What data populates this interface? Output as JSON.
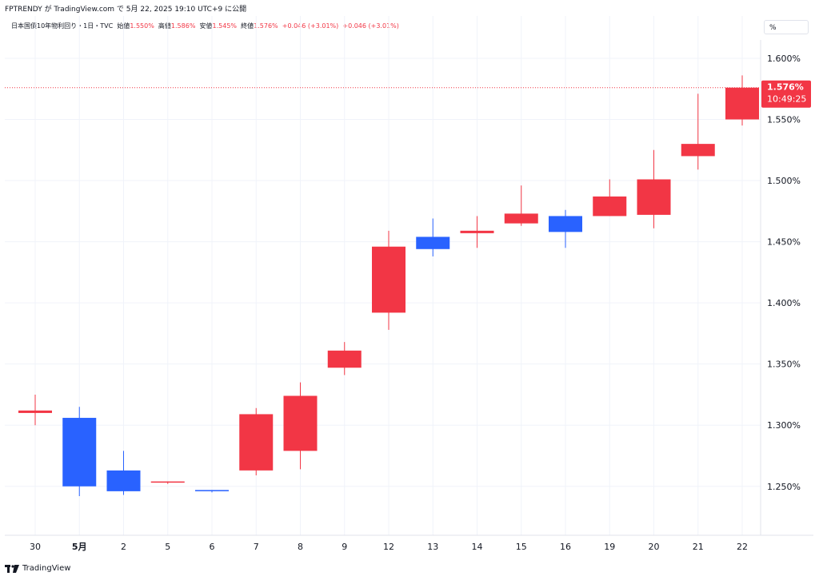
{
  "publisher_line": "FPTRENDY が TradingView.com で 5月 22, 2025 19:10 UTC+9 に公開",
  "legend": {
    "symbol": "日本国債10年物利回り・1日・TVC",
    "open_label": "始値",
    "open_value": "1.550%",
    "high_label": "高値",
    "high_value": "1.586%",
    "low_label": "安値",
    "low_value": "1.545%",
    "close_label": "終値",
    "close_value": "1.576%",
    "change": "+0.046 (+3.01%)",
    "change2": "+0.046 (+3.01%)"
  },
  "unit_selector": "%",
  "price_badge": {
    "price": "1.576%",
    "countdown": "10:49:25"
  },
  "footer": {
    "brand": "TradingView"
  },
  "colors": {
    "up": "#f23645",
    "down": "#2962ff",
    "grid": "#f0f3fa",
    "text": "#131722",
    "price_line": "#f23645"
  },
  "chart_data": {
    "type": "candlestick",
    "title": "日本国債10年物利回り・1日・TVC",
    "ylabel": "%",
    "ylim": [
      1.21,
      1.615
    ],
    "y_ticks": [
      "1.250%",
      "1.300%",
      "1.350%",
      "1.400%",
      "1.450%",
      "1.500%",
      "1.550%",
      "1.600%"
    ],
    "y_tick_values": [
      1.25,
      1.3,
      1.35,
      1.4,
      1.45,
      1.5,
      1.55,
      1.6
    ],
    "x_labels": [
      "30",
      "5月",
      "2",
      "5",
      "6",
      "7",
      "8",
      "9",
      "12",
      "13",
      "14",
      "15",
      "16",
      "19",
      "20",
      "21",
      "22"
    ],
    "x_label_bold": [
      false,
      true,
      false,
      false,
      false,
      false,
      false,
      false,
      false,
      false,
      false,
      false,
      false,
      false,
      false,
      false,
      false
    ],
    "current_price": 1.576,
    "candles": [
      {
        "o": 1.31,
        "h": 1.325,
        "l": 1.3,
        "c": 1.312
      },
      {
        "o": 1.306,
        "h": 1.315,
        "l": 1.242,
        "c": 1.25
      },
      {
        "o": 1.263,
        "h": 1.279,
        "l": 1.243,
        "c": 1.246
      },
      {
        "o": 1.253,
        "h": 1.254,
        "l": 1.252,
        "c": 1.254
      },
      {
        "o": 1.247,
        "h": 1.247,
        "l": 1.245,
        "c": 1.246
      },
      {
        "o": 1.263,
        "h": 1.314,
        "l": 1.259,
        "c": 1.309
      },
      {
        "o": 1.279,
        "h": 1.335,
        "l": 1.264,
        "c": 1.324
      },
      {
        "o": 1.347,
        "h": 1.368,
        "l": 1.341,
        "c": 1.361
      },
      {
        "o": 1.392,
        "h": 1.459,
        "l": 1.378,
        "c": 1.446
      },
      {
        "o": 1.454,
        "h": 1.469,
        "l": 1.438,
        "c": 1.444
      },
      {
        "o": 1.457,
        "h": 1.471,
        "l": 1.445,
        "c": 1.459
      },
      {
        "o": 1.465,
        "h": 1.496,
        "l": 1.463,
        "c": 1.473
      },
      {
        "o": 1.471,
        "h": 1.476,
        "l": 1.445,
        "c": 1.458
      },
      {
        "o": 1.471,
        "h": 1.501,
        "l": 1.471,
        "c": 1.487
      },
      {
        "o": 1.472,
        "h": 1.525,
        "l": 1.461,
        "c": 1.501
      },
      {
        "o": 1.52,
        "h": 1.571,
        "l": 1.509,
        "c": 1.53
      },
      {
        "o": 1.55,
        "h": 1.586,
        "l": 1.545,
        "c": 1.576
      }
    ]
  }
}
